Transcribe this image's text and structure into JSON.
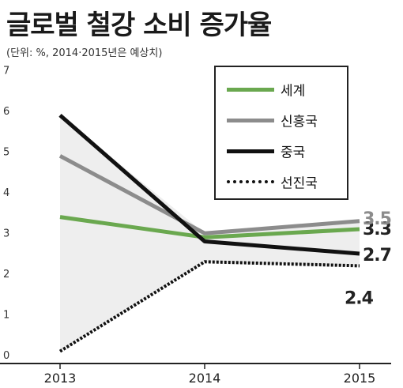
{
  "chart_data": {
    "type": "line",
    "title": "글로벌 철강 소비 증가율",
    "subtitle": "(단위: %, 2014·2015년은 예상치)",
    "categories": [
      "2013",
      "2014",
      "2015"
    ],
    "yticks": [
      "0",
      "1",
      "2",
      "3",
      "4",
      "5",
      "6",
      "7"
    ],
    "ylim": [
      0,
      7
    ],
    "grid": false,
    "legend_position": "top-right",
    "series": [
      {
        "name": "세계",
        "values": [
          3.6,
          3.1,
          3.3
        ],
        "color": "#6aa84f",
        "style": "solid",
        "end_label": "3.3",
        "end_label_color": "#222222"
      },
      {
        "name": "신흥국",
        "values": [
          5.1,
          3.2,
          3.5
        ],
        "color": "#8c8c8c",
        "style": "solid",
        "end_label": "3.5",
        "end_label_color": "#8c8c8c"
      },
      {
        "name": "중국",
        "values": [
          6.1,
          3.0,
          2.7
        ],
        "color": "#111111",
        "style": "solid",
        "end_label": "2.7",
        "end_label_color": "#222222"
      },
      {
        "name": "선진국",
        "values": [
          0.3,
          2.5,
          2.4
        ],
        "color": "#111111",
        "style": "dotted",
        "end_label": "2.4",
        "end_label_color": "#222222"
      }
    ]
  }
}
